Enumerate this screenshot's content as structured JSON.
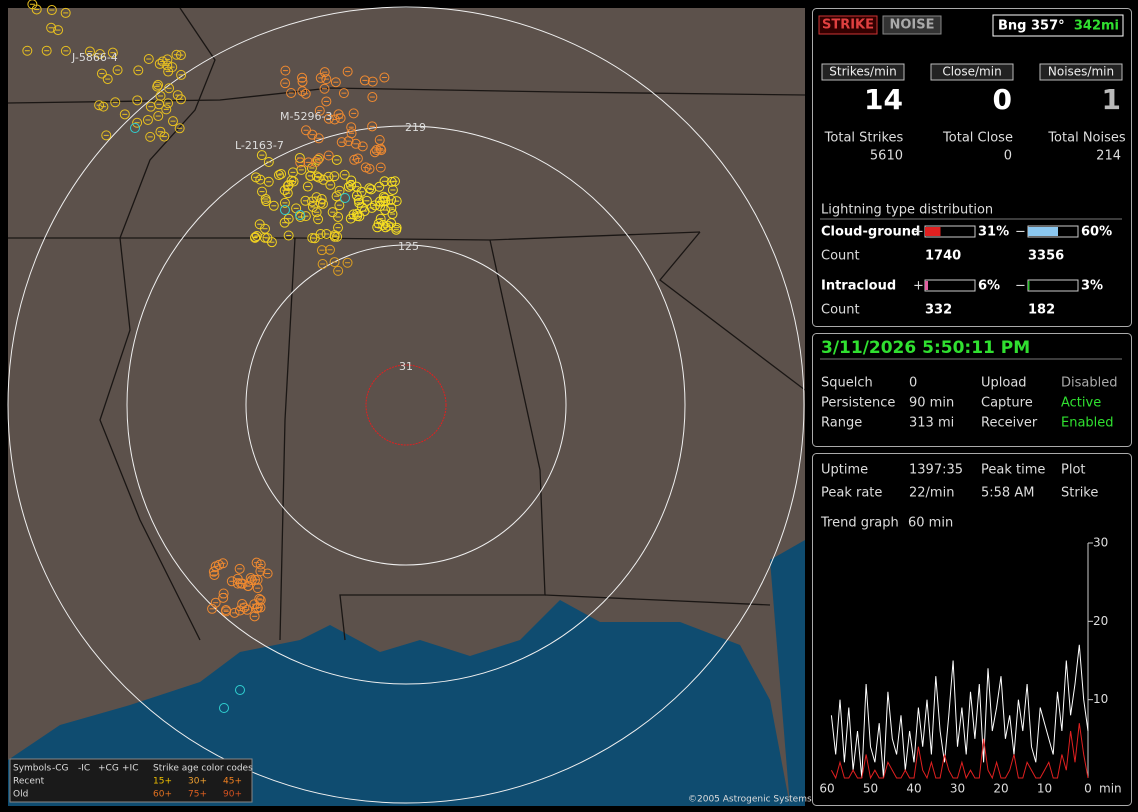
{
  "map": {
    "range_labels": [
      219,
      125,
      31
    ],
    "strike_labels": [
      "J-5866-4",
      "M-5296-3",
      "L-2163-7"
    ],
    "legend": {
      "symbols": "Symbols",
      "cols": [
        "-CG",
        "-IC",
        "+CG",
        "+IC"
      ],
      "age": "Strike age color codes",
      "recent": "Recent",
      "old": "Old",
      "recent_ages": [
        "15+",
        "30+",
        "45+"
      ],
      "old_ages": [
        "60+",
        "75+",
        "90+"
      ]
    },
    "copyright": "©2005 Astrogenic Systems"
  },
  "status": {
    "strike_button": "STRIKE",
    "noise_button": "NOISE",
    "bearing": "Bng 357°",
    "distance": "342mi",
    "rate_labels": [
      "Strikes/min",
      "Close/min",
      "Noises/min"
    ],
    "rates": [
      14,
      0,
      1
    ],
    "total_labels": [
      "Total Strikes",
      "Total Close",
      "Total Noises"
    ],
    "totals": [
      5610,
      0,
      214
    ]
  },
  "distribution": {
    "title": "Lightning type distribution",
    "count_label": "Count",
    "plus": "+",
    "minus": "−",
    "rows": [
      {
        "name": "Cloud-ground",
        "plus": {
          "value": 31,
          "label": "31%"
        },
        "minus": {
          "value": 60,
          "label": "60%"
        },
        "plus_count": 1740,
        "minus_count": 3356
      },
      {
        "name": "Intracloud",
        "plus": {
          "value": 6,
          "label": "6%"
        },
        "minus": {
          "value": 3,
          "label": "3%"
        },
        "plus_count": 332,
        "minus_count": 182
      }
    ]
  },
  "settings": {
    "datetime": "3/11/2026 5:50:11 PM",
    "rows": [
      [
        "Squelch",
        "0",
        "Upload",
        "Disabled"
      ],
      [
        "Persistence",
        "90 min",
        "Capture",
        "Active"
      ],
      [
        "Range",
        "313 mi",
        "Receiver",
        "Enabled"
      ]
    ]
  },
  "stats": {
    "rows": [
      [
        "Uptime",
        "1397:35",
        "Peak time",
        "Plot"
      ],
      [
        "Peak rate",
        "22/min",
        "5:58 AM",
        "Strike"
      ]
    ],
    "trend_label": "Trend graph",
    "trend_value": "60 min"
  },
  "chart_data": {
    "type": "line",
    "x_label": "min",
    "xlim": [
      60,
      0
    ],
    "xticks": [
      60,
      50,
      40,
      30,
      20,
      10,
      0
    ],
    "ylim": [
      0,
      30
    ],
    "yticks": [
      10,
      20,
      30
    ],
    "x": [
      59,
      58,
      57,
      56,
      55,
      54,
      53,
      52,
      51,
      50,
      49,
      48,
      47,
      46,
      45,
      44,
      43,
      42,
      41,
      40,
      39,
      38,
      37,
      36,
      35,
      34,
      33,
      32,
      31,
      30,
      29,
      28,
      27,
      26,
      25,
      24,
      23,
      22,
      21,
      20,
      19,
      18,
      17,
      16,
      15,
      14,
      13,
      12,
      11,
      10,
      9,
      8,
      7,
      6,
      5,
      4,
      3,
      2,
      1,
      0
    ],
    "series": [
      {
        "color": "#ffffff",
        "values": [
          8,
          3,
          10,
          2,
          9,
          1,
          6,
          0,
          12,
          4,
          2,
          7,
          0,
          11,
          5,
          3,
          8,
          1,
          6,
          2,
          9,
          4,
          10,
          3,
          13,
          6,
          2,
          8,
          15,
          4,
          9,
          3,
          11,
          5,
          12,
          2,
          14,
          6,
          9,
          13,
          5,
          8,
          3,
          10,
          6,
          12,
          4,
          2,
          9,
          7,
          5,
          3,
          11,
          6,
          15,
          8,
          12,
          17,
          10,
          6
        ]
      },
      {
        "color": "#e02020",
        "values": [
          1,
          0,
          2,
          0,
          0,
          1,
          0,
          0,
          3,
          0,
          1,
          0,
          0,
          2,
          1,
          0,
          0,
          1,
          0,
          0,
          4,
          1,
          0,
          2,
          0,
          0,
          3,
          1,
          0,
          0,
          2,
          0,
          1,
          0,
          0,
          5,
          1,
          0,
          2,
          0,
          0,
          1,
          3,
          0,
          0,
          2,
          1,
          0,
          0,
          1,
          2,
          0,
          0,
          3,
          1,
          6,
          2,
          7,
          3,
          0
        ]
      }
    ]
  }
}
